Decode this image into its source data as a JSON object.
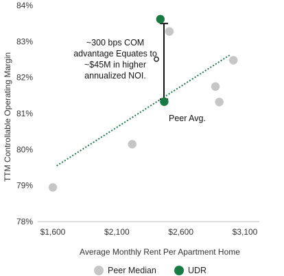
{
  "chart_data": {
    "type": "scatter",
    "xlabel": "Average Monthly Rent Per Apartment Home",
    "ylabel": "TTM Controllable Operating Margin",
    "xlim": [
      1600,
      3100
    ],
    "ylim": [
      78,
      84
    ],
    "x_ticks": [
      "$1,600",
      "$2,100",
      "$2,600",
      "$3,100"
    ],
    "y_ticks": [
      "78%",
      "79%",
      "80%",
      "81%",
      "82%",
      "83%",
      "84%"
    ],
    "series": [
      {
        "name": "Peer Median",
        "color": "#c6c6c6",
        "points": [
          {
            "x": 1600,
            "y": 78.95
          },
          {
            "x": 2220,
            "y": 80.15
          },
          {
            "x": 2510,
            "y": 83.28
          },
          {
            "x": 2870,
            "y": 81.75
          },
          {
            "x": 2900,
            "y": 81.32
          },
          {
            "x": 3010,
            "y": 82.48
          }
        ]
      },
      {
        "name": "UDR",
        "color": "#1a7a44",
        "points": [
          {
            "x": 2440,
            "y": 83.62
          },
          {
            "x": 2470,
            "y": 81.33
          }
        ]
      }
    ],
    "trendline": {
      "color": "#1a7a44",
      "style": "dotted",
      "from": {
        "x": 1630,
        "y": 79.55
      },
      "to": {
        "x": 2980,
        "y": 82.62
      }
    },
    "bracket": {
      "y_top": 83.5,
      "y_bottom": 81.4
    },
    "annotations": {
      "callout_lines": [
        "~300 bps COM",
        "advantage Equates to",
        "~$45M in higher",
        "annualized NOI."
      ],
      "peer_avg": "Peer Avg."
    },
    "legend": {
      "placement": "bottom",
      "items": [
        {
          "label": "Peer Median",
          "color": "#c6c6c6"
        },
        {
          "label": "UDR",
          "color": "#1a7a44"
        }
      ]
    },
    "grid": false
  }
}
